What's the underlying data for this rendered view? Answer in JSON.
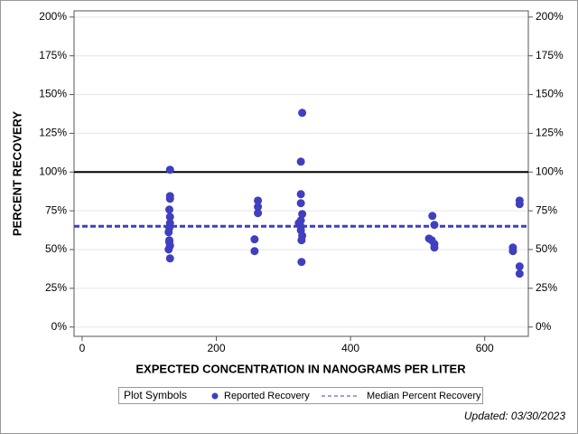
{
  "chart_data": {
    "type": "scatter",
    "x_label": "EXPECTED CONCENTRATION IN NANOGRAMS PER LITER",
    "y_label": "PERCENT RECOVERY",
    "xlim": [
      -12,
      665
    ],
    "ylim": [
      -6,
      204
    ],
    "xticks": [
      0,
      200,
      400,
      600
    ],
    "yticks": [
      {
        "value": 0,
        "label": "0%"
      },
      {
        "value": 25,
        "label": "25%"
      },
      {
        "value": 50,
        "label": "50%"
      },
      {
        "value": 75,
        "label": "75%"
      },
      {
        "value": 100,
        "label": "100%"
      },
      {
        "value": 125,
        "label": "125%"
      },
      {
        "value": 150,
        "label": "150%"
      },
      {
        "value": 175,
        "label": "175%"
      },
      {
        "value": 200,
        "label": "200%"
      }
    ],
    "grid": true,
    "reference_line": 100,
    "series": [
      {
        "name": "Reported Recovery",
        "color": "#3f3fbf",
        "x": [
          131,
          131,
          131,
          130,
          131,
          131,
          130,
          129,
          130,
          130,
          131,
          129,
          131,
          262,
          262,
          262,
          257,
          257,
          328,
          326,
          326,
          326,
          328,
          326,
          323,
          326,
          326,
          328,
          327,
          327,
          522,
          525,
          517,
          521,
          525,
          525,
          652,
          652,
          642,
          642,
          652,
          652
        ],
        "values": [
          101.5,
          84.5,
          82.8,
          75.8,
          71.1,
          67.1,
          64.1,
          61.2,
          56,
          54.8,
          52.5,
          50.1,
          44.3,
          81.6,
          77.6,
          73.5,
          56.6,
          49,
          138.2,
          106.7,
          85.7,
          79.9,
          72.9,
          68.8,
          67.1,
          64.7,
          62.4,
          58.9,
          56,
          42,
          71.7,
          65.9,
          57.1,
          56,
          53.6,
          51.3,
          81.6,
          79.3,
          51.3,
          49,
          39.1,
          34.4
        ]
      }
    ],
    "median_line": {
      "name": "Median Percent Recovery",
      "value": 65,
      "color": "#3f3fbf"
    },
    "legend_title": "Plot Symbols",
    "legend": "bottom",
    "footnote": "Updated: 03/30/2023"
  }
}
